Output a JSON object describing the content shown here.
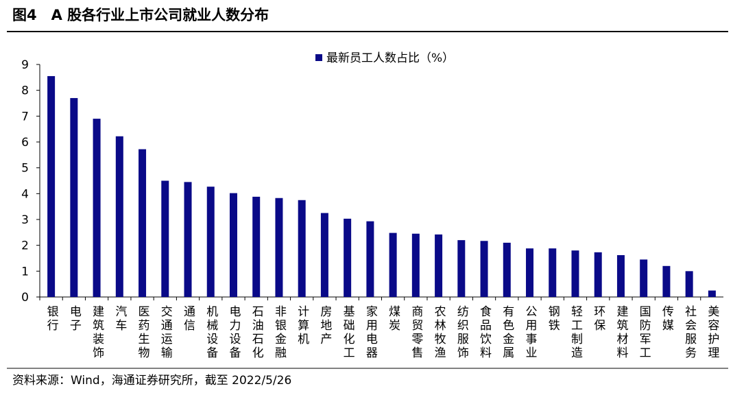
{
  "chart_data": {
    "type": "bar",
    "title": "图4　A 股各行业上市公司就业人数分布",
    "source": "资料来源：Wind，海通证券研究所，截至 2022/5/26",
    "categories": [
      "银行",
      "电子",
      "建筑装饰",
      "汽车",
      "医药生物",
      "交通运输",
      "通信",
      "机械设备",
      "电力设备",
      "石油石化",
      "非银金融",
      "计算机",
      "房地产",
      "基础化工",
      "家用电器",
      "煤炭",
      "商贸零售",
      "农林牧渔",
      "纺织服饰",
      "食品饮料",
      "有色金属",
      "公用事业",
      "钢铁",
      "轻工制造",
      "环保",
      "建筑材料",
      "国防军工",
      "传媒",
      "社会服务",
      "美容护理"
    ],
    "series": [
      {
        "name": "最新员工人数占比（%）",
        "color": "#0a0a88",
        "values": [
          8.55,
          7.7,
          6.9,
          6.22,
          5.72,
          4.5,
          4.45,
          4.27,
          4.02,
          3.88,
          3.83,
          3.75,
          3.25,
          3.03,
          2.93,
          2.48,
          2.45,
          2.42,
          2.2,
          2.17,
          2.1,
          1.88,
          1.88,
          1.8,
          1.73,
          1.62,
          1.45,
          1.2,
          1.0,
          0.25
        ]
      }
    ],
    "ylim": [
      0,
      9
    ],
    "yticks": [
      0,
      1,
      2,
      3,
      4,
      5,
      6,
      7,
      8,
      9
    ],
    "grid": false,
    "legend": "top"
  }
}
